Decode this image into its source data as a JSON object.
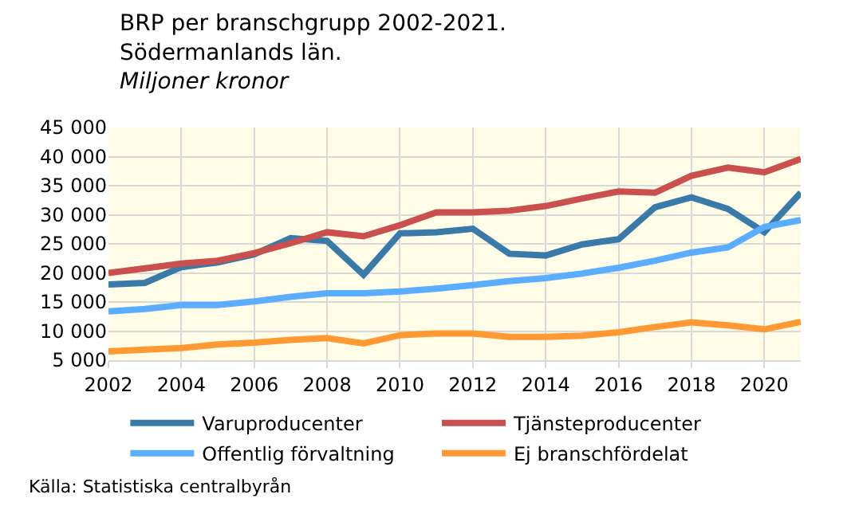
{
  "chart_data": {
    "type": "line",
    "title": "BRP per branschgrupp 2002-2021.\nSödermanlands län.",
    "subtitle": "Miljoner kronor",
    "x": [
      2002,
      2003,
      2004,
      2005,
      2006,
      2007,
      2008,
      2009,
      2010,
      2011,
      2012,
      2013,
      2014,
      2015,
      2016,
      2017,
      2018,
      2019,
      2020,
      2021
    ],
    "series": [
      {
        "name": "Varuproducenter",
        "color": "#3a7aa8",
        "values": [
          18000,
          18300,
          21000,
          21800,
          23200,
          26000,
          25500,
          19700,
          26800,
          27000,
          27600,
          23300,
          23000,
          24900,
          25800,
          31300,
          33000,
          31000,
          27000,
          33800
        ]
      },
      {
        "name": "Tjänsteproducenter",
        "color": "#c9504d",
        "values": [
          20000,
          20800,
          21600,
          22100,
          23400,
          25100,
          27000,
          26300,
          28200,
          30400,
          30400,
          30700,
          31500,
          32800,
          34000,
          33800,
          36700,
          38100,
          37300,
          39600
        ]
      },
      {
        "name": "Offentlig förvaltning",
        "color": "#5aadff",
        "values": [
          13400,
          13800,
          14500,
          14500,
          15100,
          15900,
          16500,
          16500,
          16800,
          17300,
          17900,
          18600,
          19100,
          19900,
          20900,
          22100,
          23500,
          24400,
          27900,
          29100
        ]
      },
      {
        "name": "Ej branschfördelat",
        "color": "#ff9933",
        "values": [
          6500,
          6800,
          7100,
          7700,
          8000,
          8500,
          8800,
          7900,
          9300,
          9600,
          9600,
          9000,
          9000,
          9200,
          9800,
          10700,
          11500,
          11000,
          10300,
          11600
        ]
      }
    ],
    "xlim": [
      2002,
      2021
    ],
    "xticks": [
      2002,
      2004,
      2006,
      2008,
      2010,
      2012,
      2014,
      2016,
      2018,
      2020
    ],
    "ylim": [
      5000,
      45000
    ],
    "yticks": [
      {
        "value": 5000,
        "label": "5 000"
      },
      {
        "value": 10000,
        "label": "10 000"
      },
      {
        "value": 15000,
        "label": "15 000"
      },
      {
        "value": 20000,
        "label": "20 000"
      },
      {
        "value": 25000,
        "label": "25 000"
      },
      {
        "value": 30000,
        "label": "30 000"
      },
      {
        "value": 35000,
        "label": "35 000"
      },
      {
        "value": 40000,
        "label": "40 000"
      },
      {
        "value": 45000,
        "label": "45 000"
      }
    ],
    "grid": true,
    "legend": "bottom",
    "line_style": "solid",
    "marker": "none",
    "annotations": [
      "Källa: Statistiska centralbyrån"
    ]
  }
}
